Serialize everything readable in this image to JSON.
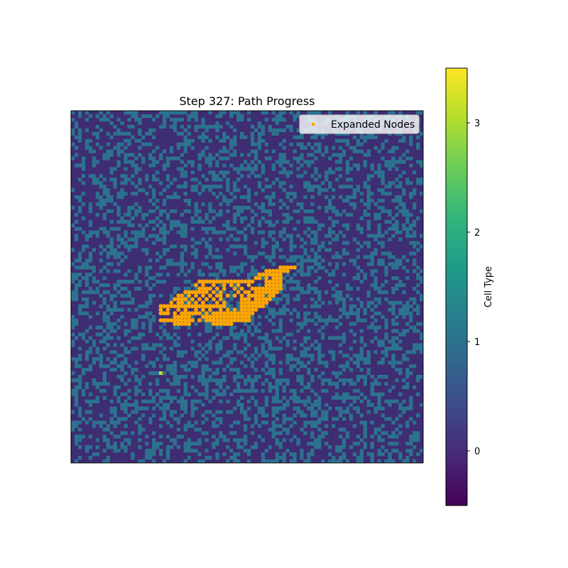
{
  "chart_data": {
    "type": "heatmap",
    "title": "Step 327: Path Progress",
    "grid_size": [
      100,
      100
    ],
    "cell_types": [
      0,
      1,
      2,
      3
    ],
    "obstacle_density": 0.35,
    "colors": {
      "background_cell": "#3e2d73",
      "wall_cell": "#2c728e",
      "start_cell": "#b5de2b",
      "expanded_node": "#ffa500"
    },
    "start_cell": {
      "col": 25,
      "row": 74
    },
    "expanded_nodes": [
      [
        59,
        44
      ],
      [
        60,
        44
      ],
      [
        61,
        44
      ],
      [
        62,
        44
      ],
      [
        63,
        44
      ],
      [
        55,
        45
      ],
      [
        56,
        45
      ],
      [
        57,
        45
      ],
      [
        58,
        45
      ],
      [
        59,
        45
      ],
      [
        60,
        45
      ],
      [
        61,
        45
      ],
      [
        53,
        46
      ],
      [
        54,
        46
      ],
      [
        55,
        46
      ],
      [
        56,
        46
      ],
      [
        57,
        46
      ],
      [
        58,
        46
      ],
      [
        59,
        46
      ],
      [
        52,
        47
      ],
      [
        53,
        47
      ],
      [
        55,
        47
      ],
      [
        57,
        47
      ],
      [
        58,
        47
      ],
      [
        59,
        47
      ],
      [
        36,
        48
      ],
      [
        37,
        48
      ],
      [
        38,
        48
      ],
      [
        39,
        48
      ],
      [
        40,
        48
      ],
      [
        41,
        48
      ],
      [
        42,
        48
      ],
      [
        43,
        48
      ],
      [
        44,
        48
      ],
      [
        45,
        48
      ],
      [
        46,
        48
      ],
      [
        47,
        48
      ],
      [
        48,
        48
      ],
      [
        49,
        48
      ],
      [
        50,
        48
      ],
      [
        51,
        48
      ],
      [
        55,
        48
      ],
      [
        56,
        48
      ],
      [
        57,
        48
      ],
      [
        58,
        48
      ],
      [
        59,
        48
      ],
      [
        35,
        49
      ],
      [
        37,
        49
      ],
      [
        40,
        49
      ],
      [
        43,
        49
      ],
      [
        45,
        49
      ],
      [
        47,
        49
      ],
      [
        50,
        49
      ],
      [
        55,
        49
      ],
      [
        56,
        49
      ],
      [
        57,
        49
      ],
      [
        58,
        49
      ],
      [
        59,
        49
      ],
      [
        36,
        50
      ],
      [
        37,
        50
      ],
      [
        38,
        50
      ],
      [
        39,
        50
      ],
      [
        41,
        50
      ],
      [
        43,
        50
      ],
      [
        46,
        50
      ],
      [
        48,
        50
      ],
      [
        51,
        50
      ],
      [
        52,
        50
      ],
      [
        53,
        50
      ],
      [
        54,
        50
      ],
      [
        55,
        50
      ],
      [
        56,
        50
      ],
      [
        57,
        50
      ],
      [
        58,
        50
      ],
      [
        59,
        50
      ],
      [
        32,
        51
      ],
      [
        33,
        51
      ],
      [
        34,
        51
      ],
      [
        35,
        51
      ],
      [
        36,
        51
      ],
      [
        37,
        51
      ],
      [
        38,
        51
      ],
      [
        40,
        51
      ],
      [
        42,
        51
      ],
      [
        47,
        51
      ],
      [
        49,
        51
      ],
      [
        50,
        51
      ],
      [
        52,
        51
      ],
      [
        53,
        51
      ],
      [
        54,
        51
      ],
      [
        55,
        51
      ],
      [
        56,
        51
      ],
      [
        57,
        51
      ],
      [
        58,
        51
      ],
      [
        30,
        52
      ],
      [
        31,
        52
      ],
      [
        33,
        52
      ],
      [
        35,
        52
      ],
      [
        37,
        52
      ],
      [
        39,
        52
      ],
      [
        41,
        52
      ],
      [
        42,
        52
      ],
      [
        44,
        52
      ],
      [
        46,
        52
      ],
      [
        48,
        52
      ],
      [
        50,
        52
      ],
      [
        51,
        52
      ],
      [
        52,
        52
      ],
      [
        53,
        52
      ],
      [
        54,
        52
      ],
      [
        56,
        52
      ],
      [
        57,
        52
      ],
      [
        29,
        53
      ],
      [
        30,
        53
      ],
      [
        31,
        53
      ],
      [
        32,
        53
      ],
      [
        34,
        53
      ],
      [
        36,
        53
      ],
      [
        38,
        53
      ],
      [
        40,
        53
      ],
      [
        42,
        53
      ],
      [
        48,
        53
      ],
      [
        49,
        53
      ],
      [
        50,
        53
      ],
      [
        52,
        53
      ],
      [
        53,
        53
      ],
      [
        54,
        53
      ],
      [
        55,
        53
      ],
      [
        56,
        53
      ],
      [
        28,
        54
      ],
      [
        30,
        54
      ],
      [
        31,
        54
      ],
      [
        33,
        54
      ],
      [
        35,
        54
      ],
      [
        37,
        54
      ],
      [
        41,
        54
      ],
      [
        43,
        54
      ],
      [
        48,
        54
      ],
      [
        49,
        54
      ],
      [
        50,
        54
      ],
      [
        51,
        54
      ],
      [
        52,
        54
      ],
      [
        53,
        54
      ],
      [
        54,
        54
      ],
      [
        55,
        54
      ],
      [
        25,
        55
      ],
      [
        26,
        55
      ],
      [
        27,
        55
      ],
      [
        28,
        55
      ],
      [
        29,
        55
      ],
      [
        30,
        55
      ],
      [
        31,
        55
      ],
      [
        32,
        55
      ],
      [
        33,
        55
      ],
      [
        34,
        55
      ],
      [
        35,
        55
      ],
      [
        36,
        55
      ],
      [
        37,
        55
      ],
      [
        38,
        55
      ],
      [
        39,
        55
      ],
      [
        40,
        55
      ],
      [
        41,
        55
      ],
      [
        42,
        55
      ],
      [
        43,
        55
      ],
      [
        48,
        55
      ],
      [
        49,
        55
      ],
      [
        50,
        55
      ],
      [
        51,
        55
      ],
      [
        52,
        55
      ],
      [
        53,
        55
      ],
      [
        54,
        55
      ],
      [
        25,
        56
      ],
      [
        27,
        56
      ],
      [
        30,
        56
      ],
      [
        32,
        56
      ],
      [
        35,
        56
      ],
      [
        37,
        56
      ],
      [
        39,
        56
      ],
      [
        42,
        56
      ],
      [
        44,
        56
      ],
      [
        46,
        56
      ],
      [
        48,
        56
      ],
      [
        49,
        56
      ],
      [
        50,
        56
      ],
      [
        51,
        56
      ],
      [
        52,
        56
      ],
      [
        25,
        57
      ],
      [
        26,
        57
      ],
      [
        27,
        57
      ],
      [
        29,
        57
      ],
      [
        31,
        57
      ],
      [
        32,
        57
      ],
      [
        33,
        57
      ],
      [
        34,
        57
      ],
      [
        35,
        57
      ],
      [
        36,
        57
      ],
      [
        38,
        57
      ],
      [
        40,
        57
      ],
      [
        41,
        57
      ],
      [
        42,
        57
      ],
      [
        43,
        57
      ],
      [
        44,
        57
      ],
      [
        45,
        57
      ],
      [
        46,
        57
      ],
      [
        47,
        57
      ],
      [
        48,
        57
      ],
      [
        49,
        57
      ],
      [
        50,
        57
      ],
      [
        51,
        57
      ],
      [
        29,
        58
      ],
      [
        30,
        58
      ],
      [
        31,
        58
      ],
      [
        32,
        58
      ],
      [
        33,
        58
      ],
      [
        37,
        58
      ],
      [
        38,
        58
      ],
      [
        39,
        58
      ],
      [
        40,
        58
      ],
      [
        41,
        58
      ],
      [
        42,
        58
      ],
      [
        43,
        58
      ],
      [
        44,
        58
      ],
      [
        45,
        58
      ],
      [
        46,
        58
      ],
      [
        47,
        58
      ],
      [
        48,
        58
      ],
      [
        49,
        58
      ],
      [
        50,
        58
      ],
      [
        25,
        59
      ],
      [
        26,
        59
      ],
      [
        27,
        59
      ],
      [
        28,
        59
      ],
      [
        29,
        59
      ],
      [
        30,
        59
      ],
      [
        31,
        59
      ],
      [
        32,
        59
      ],
      [
        33,
        59
      ],
      [
        34,
        59
      ],
      [
        36,
        59
      ],
      [
        38,
        59
      ],
      [
        39,
        59
      ],
      [
        40,
        59
      ],
      [
        41,
        59
      ],
      [
        42,
        59
      ],
      [
        43,
        59
      ],
      [
        44,
        59
      ],
      [
        45,
        59
      ],
      [
        46,
        59
      ],
      [
        47,
        59
      ],
      [
        48,
        59
      ],
      [
        49,
        59
      ],
      [
        50,
        59
      ],
      [
        29,
        60
      ],
      [
        30,
        60
      ],
      [
        31,
        60
      ],
      [
        32,
        60
      ],
      [
        33,
        60
      ],
      [
        40,
        60
      ],
      [
        41,
        60
      ],
      [
        42,
        60
      ],
      [
        43,
        60
      ],
      [
        44,
        60
      ],
      [
        45,
        60
      ]
    ],
    "legend": {
      "entries": [
        "Expanded Nodes"
      ],
      "placement": "upper right"
    },
    "colorbar": {
      "label": "Cell Type",
      "ticks": [
        "0",
        "1",
        "2",
        "3"
      ],
      "range": [
        -0.5,
        3.5
      ],
      "colormap": [
        "#440154",
        "#482878",
        "#3e4989",
        "#31688e",
        "#26828e",
        "#1f9e89",
        "#35b779",
        "#6ece58",
        "#b5de2b",
        "#fde725"
      ]
    }
  }
}
